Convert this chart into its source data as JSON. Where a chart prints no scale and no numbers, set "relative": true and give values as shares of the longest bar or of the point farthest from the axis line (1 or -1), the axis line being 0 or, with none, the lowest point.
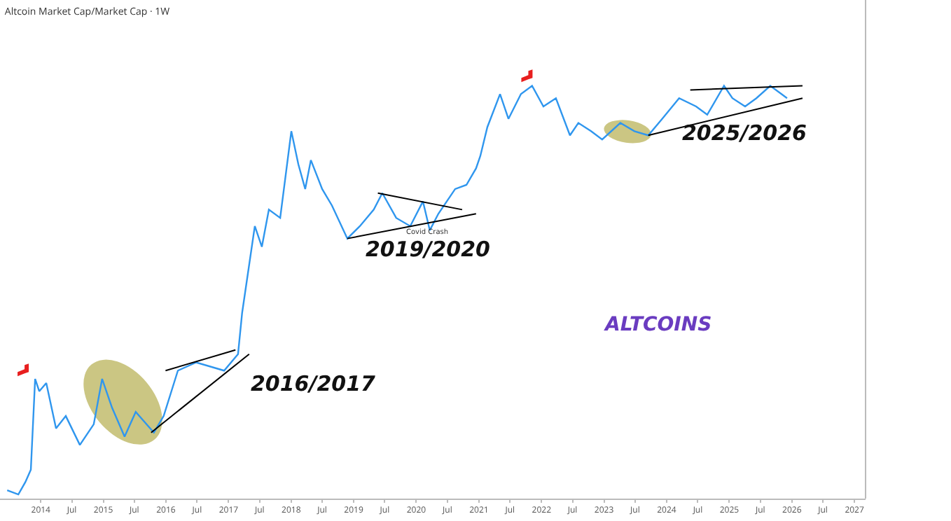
{
  "chart_data": {
    "type": "line",
    "title": "Altcoin Market Cap/Market Cap · 1W",
    "relative": true,
    "annotations": [
      "2016/2017",
      "2019/2020",
      "2025/2026",
      "Covid Crash",
      "ALTCOINS"
    ],
    "xlim": [
      "2013-05-08",
      "2027-03-07"
    ],
    "xticks": [
      {
        "value": "2014-01-01",
        "label": "2014"
      },
      {
        "value": "2014-07-01",
        "label": "Jul"
      },
      {
        "value": "2015-01-01",
        "label": "2015"
      },
      {
        "value": "2015-07-01",
        "label": "Jul"
      },
      {
        "value": "2016-01-01",
        "label": "2016"
      },
      {
        "value": "2016-07-01",
        "label": "Jul"
      },
      {
        "value": "2017-01-01",
        "label": "2017"
      },
      {
        "value": "2017-07-01",
        "label": "Jul"
      },
      {
        "value": "2018-01-01",
        "label": "2018"
      },
      {
        "value": "2018-07-01",
        "label": "Jul"
      },
      {
        "value": "2019-01-01",
        "label": "2019"
      },
      {
        "value": "2019-07-01",
        "label": "Jul"
      },
      {
        "value": "2020-01-01",
        "label": "2020"
      },
      {
        "value": "2020-07-01",
        "label": "Jul"
      },
      {
        "value": "2021-01-01",
        "label": "2021"
      },
      {
        "value": "2021-07-01",
        "label": "Jul"
      },
      {
        "value": "2022-01-01",
        "label": "2022"
      },
      {
        "value": "2022-07-01",
        "label": "Jul"
      },
      {
        "value": "2023-01-01",
        "label": "2023"
      },
      {
        "value": "2023-07-01",
        "label": "Jul"
      },
      {
        "value": "2024-01-01",
        "label": "2024"
      },
      {
        "value": "2024-07-01",
        "label": "Jul"
      },
      {
        "value": "2025-01-01",
        "label": "2025"
      },
      {
        "value": "2025-07-01",
        "label": "Jul"
      },
      {
        "value": "2026-01-01",
        "label": "2026"
      },
      {
        "value": "2026-07-01",
        "label": "Jul"
      },
      {
        "value": "2027-01-01",
        "label": "2027"
      }
    ],
    "x": [
      "2013-06-19",
      "2013-08-23",
      "2013-10-03",
      "2013-11-04",
      "2013-11-29",
      "2013-12-23",
      "2014-02-02",
      "2014-03-31",
      "2014-05-27",
      "2014-08-17",
      "2014-11-06",
      "2014-12-25",
      "2015-02-21",
      "2015-05-05",
      "2015-07-09",
      "2015-10-23",
      "2015-12-19",
      "2016-03-11",
      "2016-06-26",
      "2016-12-06",
      "2017-02-25",
      "2017-03-21",
      "2017-06-03",
      "2017-07-14",
      "2017-08-24",
      "2017-10-29",
      "2018-01-02",
      "2018-02-12",
      "2018-03-24",
      "2018-04-26",
      "2018-07-01",
      "2018-08-27",
      "2018-11-25",
      "2019-02-06",
      "2019-04-28",
      "2019-06-17",
      "2019-09-06",
      "2019-11-27",
      "2020-02-09",
      "2020-03-20",
      "2020-05-09",
      "2020-08-15",
      "2020-10-20",
      "2020-12-15",
      "2021-01-09",
      "2021-02-19",
      "2021-05-04",
      "2021-06-22",
      "2021-09-03",
      "2021-11-07",
      "2022-01-12",
      "2022-03-26",
      "2022-06-16",
      "2022-08-04",
      "2022-10-17",
      "2022-12-21",
      "2023-04-06",
      "2023-06-27",
      "2023-09-16",
      "2023-12-06",
      "2024-03-14",
      "2024-06-21",
      "2024-08-25",
      "2024-12-01",
      "2025-01-19",
      "2025-04-03",
      "2025-06-08",
      "2025-08-28",
      "2025-11-01",
      "2025-12-04"
    ],
    "series": [
      {
        "color": "#2f96ee",
        "values": [
          0.02,
          0.01,
          0.04,
          0.07,
          0.29,
          0.26,
          0.28,
          0.17,
          0.2,
          0.13,
          0.18,
          0.29,
          0.22,
          0.15,
          0.21,
          0.16,
          0.2,
          0.31,
          0.33,
          0.31,
          0.35,
          0.45,
          0.66,
          0.61,
          0.7,
          0.68,
          0.89,
          0.81,
          0.75,
          0.82,
          0.75,
          0.71,
          0.63,
          0.66,
          0.7,
          0.74,
          0.68,
          0.66,
          0.72,
          0.65,
          0.69,
          0.75,
          0.76,
          0.8,
          0.83,
          0.9,
          0.98,
          0.92,
          0.98,
          1.0,
          0.95,
          0.97,
          0.88,
          0.91,
          0.89,
          0.87,
          0.91,
          0.89,
          0.88,
          0.92,
          0.97,
          0.95,
          0.93,
          1.0,
          0.97,
          0.95,
          0.97,
          1.0,
          0.98,
          0.97
        ]
      },
      {
        "type": "line",
        "color": "#000000",
        "x": [
          "2015-12-30",
          "2017-02-10"
        ],
        "values": [
          0.31,
          0.36
        ]
      },
      {
        "type": "line",
        "color": "#000000",
        "x": [
          "2015-10-07",
          "2017-05-01"
        ],
        "values": [
          0.16,
          0.35
        ]
      },
      {
        "type": "line",
        "color": "#000000",
        "x": [
          "2019-05-22",
          "2020-09-25"
        ],
        "values": [
          0.74,
          0.7
        ]
      },
      {
        "type": "line",
        "color": "#000000",
        "x": [
          "2018-11-25",
          "2020-12-15"
        ],
        "values": [
          0.63,
          0.69
        ]
      },
      {
        "type": "line",
        "color": "#000000",
        "x": [
          "2024-05-18",
          "2026-03-04"
        ],
        "values": [
          0.99,
          1.0
        ]
      },
      {
        "type": "line",
        "color": "#000000",
        "x": [
          "2023-09-16",
          "2026-03-04"
        ],
        "values": [
          0.88,
          0.97
        ]
      }
    ]
  }
}
